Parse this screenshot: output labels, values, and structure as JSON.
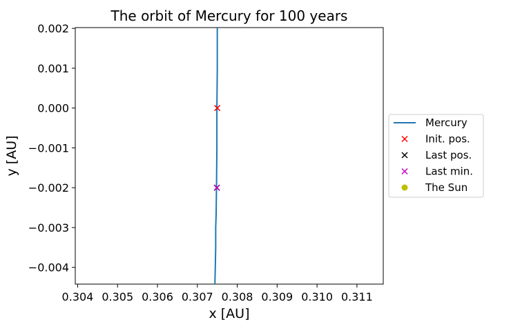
{
  "chart_data": {
    "type": "line",
    "title": "The orbit of Mercury for 100 years",
    "xlabel": "x [AU]",
    "ylabel": "y [AU]",
    "xlim": [
      0.30394,
      0.31166
    ],
    "ylim": [
      -0.00442,
      0.00202
    ],
    "xticks": [
      0.304,
      0.305,
      0.306,
      0.307,
      0.308,
      0.309,
      0.31,
      0.311
    ],
    "xtick_labels": [
      "0.304",
      "0.305",
      "0.306",
      "0.307",
      "0.308",
      "0.309",
      "0.310",
      "0.311"
    ],
    "yticks": [
      0.002,
      0.001,
      0.0,
      -0.001,
      -0.002,
      -0.003,
      -0.004
    ],
    "ytick_labels": [
      "0.002",
      "0.001",
      "0.000",
      "−0.001",
      "−0.002",
      "−0.003",
      "−0.004"
    ],
    "grid": false,
    "legend_position": "center-right-outside",
    "series": [
      {
        "name": "Mercury",
        "kind": "line",
        "color": "#1f77b4",
        "x": [
          0.3075,
          0.3075,
          0.30749,
          0.30749,
          0.30748,
          0.30747,
          0.30746,
          0.30746,
          0.30745,
          0.30744
        ],
        "y": [
          0.00202,
          0.001,
          0.0,
          -0.001,
          -0.002,
          -0.0027,
          -0.003,
          -0.0035,
          -0.004,
          -0.00442
        ]
      },
      {
        "name": "Init. pos.",
        "kind": "marker",
        "marker": "x",
        "color": "#ff0000",
        "x": [
          0.3075
        ],
        "y": [
          0.0
        ]
      },
      {
        "name": "Last pos.",
        "kind": "marker",
        "marker": "x",
        "color": "#000000",
        "x": [
          0.30749
        ],
        "y": [
          -0.002
        ]
      },
      {
        "name": "Last min.",
        "kind": "marker",
        "marker": "x",
        "color": "#bf00bf",
        "x": [
          0.30749
        ],
        "y": [
          -0.002
        ]
      },
      {
        "name": "The Sun",
        "kind": "marker",
        "marker": "o",
        "color": "#bfbf00",
        "x": [],
        "y": []
      }
    ]
  }
}
